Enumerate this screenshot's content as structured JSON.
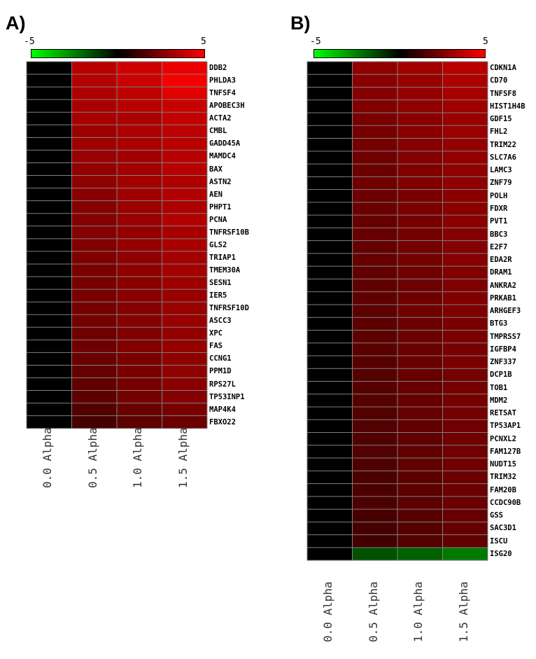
{
  "panels": {
    "a": {
      "letter": "A)",
      "scale_min": "-5",
      "scale_max": "5"
    },
    "b": {
      "letter": "B)",
      "scale_min": "-5",
      "scale_max": "5"
    }
  },
  "colors": {
    "low": "#00ff00",
    "mid": "#000000",
    "high": "#ff0000",
    "grid": "#808080"
  },
  "chart_data": [
    {
      "type": "heatmap",
      "title": "A)",
      "color_scale": [
        -5,
        5
      ],
      "columns": [
        "0.0 Alpha",
        "0.5 Alpha",
        "1.0 Alpha",
        "1.5 Alpha"
      ],
      "rows": [
        "DDB2",
        "PHLDA3",
        "TNFSF4",
        "APOBEC3H",
        "ACTA2",
        "CMBL",
        "GADD45A",
        "MAMDC4",
        "BAX",
        "ASTN2",
        "AEN",
        "PHPT1",
        "PCNA",
        "TNFRSF10B",
        "GLS2",
        "TRIAP1",
        "TMEM30A",
        "SESN1",
        "IER5",
        "TNFRSF10D",
        "ASCC3",
        "XPC",
        "FAS",
        "CCNG1",
        "PPM1D",
        "RPS27L",
        "TP53INP1",
        "MAP4K4",
        "FBXO22"
      ],
      "values": [
        [
          0,
          3.6,
          4.1,
          4.6
        ],
        [
          0,
          3.5,
          4.0,
          4.8
        ],
        [
          0,
          3.4,
          3.7,
          4.4
        ],
        [
          0,
          3.3,
          3.6,
          3.9
        ],
        [
          0,
          3.3,
          3.4,
          3.8
        ],
        [
          0,
          3.1,
          3.4,
          3.7
        ],
        [
          0,
          3.1,
          3.3,
          3.6
        ],
        [
          0,
          3.0,
          3.2,
          3.6
        ],
        [
          0,
          2.9,
          3.2,
          3.6
        ],
        [
          0,
          2.8,
          3.2,
          3.4
        ],
        [
          0,
          2.7,
          3.1,
          3.5
        ],
        [
          0,
          2.6,
          3.1,
          3.4
        ],
        [
          0,
          2.6,
          3.0,
          3.5
        ],
        [
          0,
          2.6,
          2.9,
          3.3
        ],
        [
          0,
          2.5,
          2.9,
          3.3
        ],
        [
          0,
          2.5,
          2.8,
          3.2
        ],
        [
          0,
          2.4,
          2.8,
          3.2
        ],
        [
          0,
          2.4,
          2.7,
          3.1
        ],
        [
          0,
          2.4,
          2.7,
          3.0
        ],
        [
          0,
          2.3,
          2.6,
          3.0
        ],
        [
          0,
          2.3,
          2.6,
          3.0
        ],
        [
          0,
          2.2,
          2.5,
          2.9
        ],
        [
          0,
          2.2,
          2.5,
          2.9
        ],
        [
          0,
          2.1,
          2.4,
          2.8
        ],
        [
          0,
          2.0,
          2.4,
          2.8
        ],
        [
          0,
          1.9,
          2.3,
          2.7
        ],
        [
          0,
          1.8,
          2.3,
          2.6
        ],
        [
          0,
          1.6,
          2.1,
          2.4
        ],
        [
          0,
          1.4,
          1.8,
          2.1
        ]
      ]
    },
    {
      "type": "heatmap",
      "title": "B)",
      "color_scale": [
        -5,
        5
      ],
      "columns": [
        "0.0 Alpha",
        "0.5 Alpha",
        "1.0 Alpha",
        "1.5 Alpha"
      ],
      "rows": [
        "CDKN1A",
        "CD70",
        "TNFSF8",
        "HIST1H4B",
        "GDF15",
        "FHL2",
        "TRIM22",
        "SLC7A6",
        "LAMC3",
        "ZNF79",
        "POLH",
        "FDXR",
        "PVT1",
        "BBC3",
        "E2F7",
        "EDA2R",
        "DRAM1",
        "ANKRA2",
        "PRKAB1",
        "ARHGEF3",
        "BTG3",
        "TMPRSS7",
        "IGFBP4",
        "ZNF337",
        "DCP1B",
        "TOB1",
        "MDM2",
        "RETSAT",
        "TP53AP1",
        "PCNXL2",
        "FAM127B",
        "NUDT15",
        "TRIM32",
        "FAM20B",
        "CCDC90B",
        "GSS",
        "SAC3D1",
        "ISCU",
        "ISG20"
      ],
      "values": [
        [
          0,
          2.8,
          3.2,
          3.6
        ],
        [
          0,
          2.7,
          3.0,
          3.4
        ],
        [
          0,
          2.6,
          2.9,
          3.3
        ],
        [
          0,
          2.5,
          2.8,
          3.1
        ],
        [
          0,
          2.4,
          2.7,
          3.0
        ],
        [
          0,
          2.3,
          2.7,
          3.0
        ],
        [
          0,
          2.3,
          2.6,
          2.9
        ],
        [
          0,
          2.2,
          2.6,
          2.9
        ],
        [
          0,
          2.1,
          2.5,
          2.8
        ],
        [
          0,
          2.2,
          2.5,
          2.8
        ],
        [
          0,
          2.1,
          2.4,
          2.7
        ],
        [
          0,
          2.1,
          2.4,
          2.7
        ],
        [
          0,
          2.0,
          2.4,
          2.7
        ],
        [
          0,
          2.0,
          2.3,
          2.6
        ],
        [
          0,
          2.0,
          2.3,
          2.6
        ],
        [
          0,
          2.0,
          2.3,
          2.6
        ],
        [
          0,
          1.9,
          2.2,
          2.5
        ],
        [
          0,
          1.9,
          2.2,
          2.5
        ],
        [
          0,
          1.9,
          2.2,
          2.5
        ],
        [
          0,
          1.8,
          2.2,
          2.5
        ],
        [
          0,
          1.8,
          2.1,
          2.4
        ],
        [
          0,
          1.8,
          2.1,
          2.4
        ],
        [
          0,
          1.8,
          2.1,
          2.4
        ],
        [
          0,
          1.7,
          2.1,
          2.4
        ],
        [
          0,
          1.7,
          2.0,
          2.3
        ],
        [
          0,
          1.7,
          2.0,
          2.3
        ],
        [
          0,
          1.7,
          2.0,
          2.3
        ],
        [
          0,
          1.6,
          2.0,
          2.3
        ],
        [
          0,
          1.6,
          1.9,
          2.2
        ],
        [
          0,
          1.6,
          1.9,
          2.2
        ],
        [
          0,
          1.6,
          1.9,
          2.2
        ],
        [
          0,
          1.5,
          1.9,
          2.2
        ],
        [
          0,
          1.5,
          1.8,
          2.1
        ],
        [
          0,
          1.5,
          1.8,
          2.1
        ],
        [
          0,
          1.5,
          1.8,
          2.1
        ],
        [
          0,
          1.4,
          1.7,
          2.0
        ],
        [
          0,
          1.4,
          1.7,
          2.0
        ],
        [
          0,
          1.3,
          1.6,
          1.9
        ],
        [
          0,
          -1.6,
          -1.9,
          -2.4
        ]
      ]
    }
  ]
}
